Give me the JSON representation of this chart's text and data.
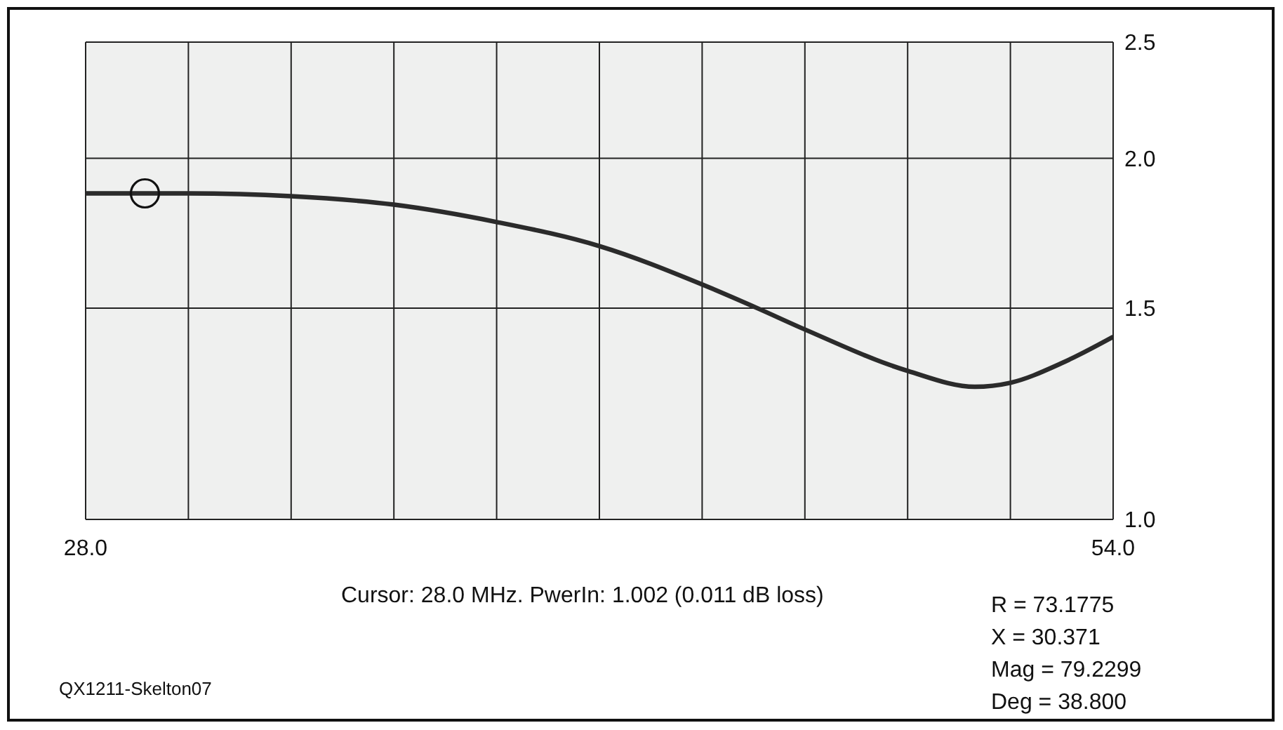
{
  "chart_data": {
    "type": "line",
    "x": [
      28.0,
      30.6,
      33.2,
      35.8,
      38.4,
      41.0,
      43.6,
      45.0,
      46.2,
      48.8,
      50.5,
      51.4,
      52.7,
      54.0
    ],
    "series": [
      {
        "color": "#2b2b2b",
        "values": [
          1.87,
          1.87,
          1.86,
          1.83,
          1.77,
          1.69,
          1.57,
          1.5,
          1.44,
          1.33,
          1.29,
          1.3,
          1.35,
          1.42
        ]
      },
      {
        "type": "scatter",
        "color": "#111111",
        "marker": "circle",
        "x": [
          29.5
        ],
        "values": [
          1.87
        ]
      }
    ],
    "xlim": [
      28.0,
      54.0
    ],
    "xticks": [
      {
        "value": 28.0,
        "label": "28.0"
      },
      {
        "value": 30.6,
        "label": null
      },
      {
        "value": 33.2,
        "label": null
      },
      {
        "value": 35.8,
        "label": null
      },
      {
        "value": 38.4,
        "label": null
      },
      {
        "value": 41.0,
        "label": null
      },
      {
        "value": 43.6,
        "label": null
      },
      {
        "value": 46.2,
        "label": null
      },
      {
        "value": 48.8,
        "label": null
      },
      {
        "value": 51.4,
        "label": null
      },
      {
        "value": 54.0,
        "label": "54.0"
      }
    ],
    "ylim": [
      1.0,
      2.5
    ],
    "yticks": [
      {
        "value": 1.0,
        "label": "1.0"
      },
      {
        "value": 1.5,
        "label": "1.5"
      },
      {
        "value": 2.0,
        "label": "2.0"
      },
      {
        "value": 2.5,
        "label": "2.5"
      }
    ],
    "log": "y",
    "grid": true,
    "annotations": [
      "Cursor: 28.0 MHz. PwerIn: 1.002 (0.011 dB loss)",
      "R = 73.1775",
      "X = 30.371",
      "Mag = 79.2299",
      "Deg = 38.800",
      "QX1211-Skelton07"
    ]
  }
}
